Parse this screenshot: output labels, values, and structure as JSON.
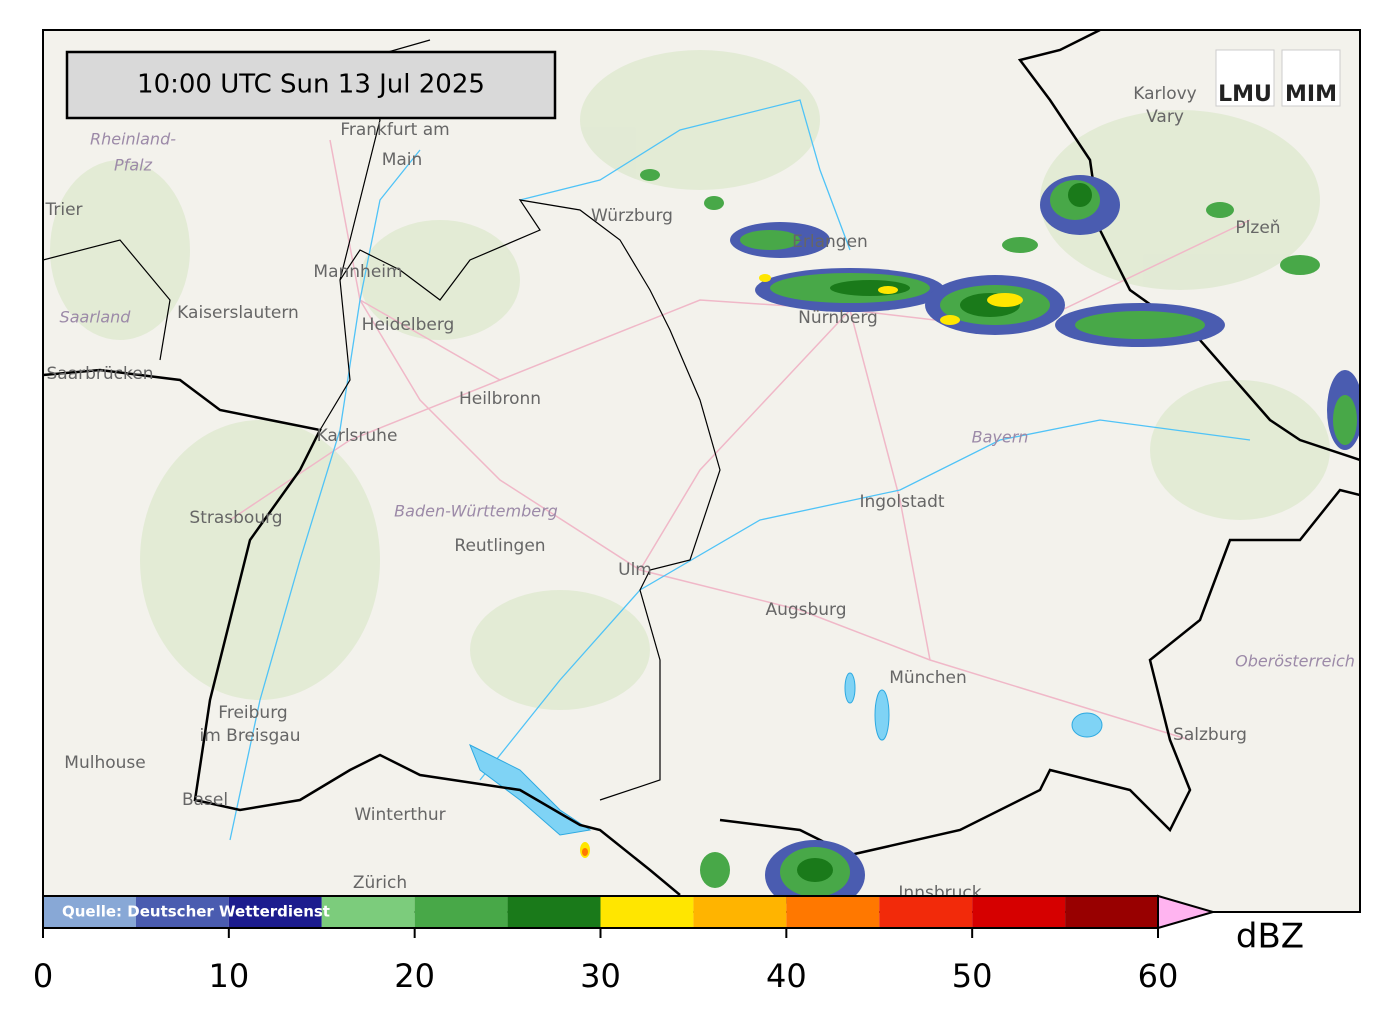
{
  "timestamp": "10:00 UTC  Sun 13 Jul 2025",
  "source": "Quelle: Deutscher Wetterdienst",
  "logo": [
    "LMU",
    "MIM"
  ],
  "places": [
    "Frankfurt am",
    "Main",
    "Rheinland-",
    "Pfalz",
    "Trier",
    "Mannheim",
    "Kaiserslautern",
    "Heidelberg",
    "Saarland",
    "Saarbrücken",
    "Heilbronn",
    "Karlsruhe",
    "Strasbourg",
    "Baden-Württemberg",
    "Reutlingen",
    "Ulm",
    "Augsburg",
    "Ingolstadt",
    "München",
    "Nürnberg",
    "Erlangen",
    "Würzburg",
    "Bayern",
    "Karlovy",
    "Vary",
    "Plzeň",
    "Freiburg",
    "im Breisgau",
    "Mulhouse",
    "Basel",
    "Winterthur",
    "Zürich",
    "Salzburg",
    "Oberösterreich",
    "Innsbruck"
  ],
  "colorbar": {
    "bounds": [
      0,
      5,
      10,
      15,
      20,
      25,
      30,
      35,
      40,
      45,
      50,
      55,
      60
    ],
    "colors": [
      "#88a8d6",
      "#4a5cb0",
      "#1c1c8e",
      "#7ccc7c",
      "#48a848",
      "#1a7a1a",
      "#ffe600",
      "#ffb400",
      "#ff7800",
      "#f22a0a",
      "#d60000",
      "#980000"
    ],
    "extend_color": "#ffb4f0",
    "ticks": [
      0,
      10,
      20,
      30,
      40,
      50,
      60
    ],
    "unit": "dBZ"
  }
}
